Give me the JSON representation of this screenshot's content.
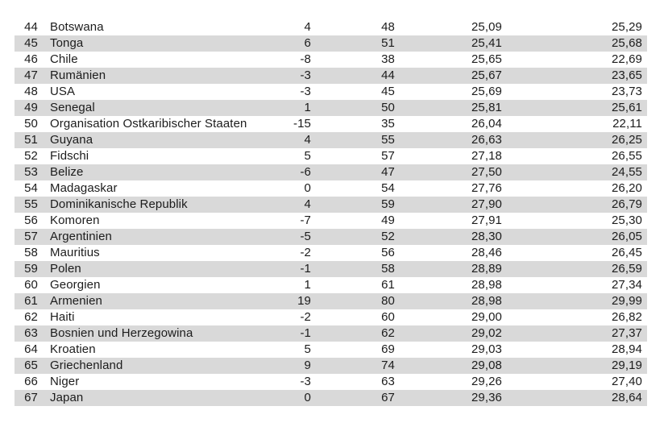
{
  "table": {
    "row_alt_bg": "#d9d9d9",
    "text_color": "#1c1c1c",
    "rows": [
      {
        "rank": "44",
        "country": "Botswana",
        "values": [
          "4",
          "48",
          "25,09",
          "25,29"
        ]
      },
      {
        "rank": "45",
        "country": "Tonga",
        "values": [
          "6",
          "51",
          "25,41",
          "25,68"
        ]
      },
      {
        "rank": "46",
        "country": "Chile",
        "values": [
          "-8",
          "38",
          "25,65",
          "22,69"
        ]
      },
      {
        "rank": "47",
        "country": "Rumänien",
        "values": [
          "-3",
          "44",
          "25,67",
          "23,65"
        ]
      },
      {
        "rank": "48",
        "country": "USA",
        "values": [
          "-3",
          "45",
          "25,69",
          "23,73"
        ]
      },
      {
        "rank": "49",
        "country": "Senegal",
        "values": [
          "1",
          "50",
          "25,81",
          "25,61"
        ]
      },
      {
        "rank": "50",
        "country": "Organisation Ostkaribischer Staaten",
        "values": [
          "-15",
          "35",
          "26,04",
          "22,11"
        ]
      },
      {
        "rank": "51",
        "country": "Guyana",
        "values": [
          "4",
          "55",
          "26,63",
          "26,25"
        ]
      },
      {
        "rank": "52",
        "country": "Fidschi",
        "values": [
          "5",
          "57",
          "27,18",
          "26,55"
        ]
      },
      {
        "rank": "53",
        "country": "Belize",
        "values": [
          "-6",
          "47",
          "27,50",
          "24,55"
        ]
      },
      {
        "rank": "54",
        "country": "Madagaskar",
        "values": [
          "0",
          "54",
          "27,76",
          "26,20"
        ]
      },
      {
        "rank": "55",
        "country": "Dominikanische Republik",
        "values": [
          "4",
          "59",
          "27,90",
          "26,79"
        ]
      },
      {
        "rank": "56",
        "country": "Komoren",
        "values": [
          "-7",
          "49",
          "27,91",
          "25,30"
        ]
      },
      {
        "rank": "57",
        "country": "Argentinien",
        "values": [
          "-5",
          "52",
          "28,30",
          "26,05"
        ]
      },
      {
        "rank": "58",
        "country": "Mauritius",
        "values": [
          "-2",
          "56",
          "28,46",
          "26,45"
        ]
      },
      {
        "rank": "59",
        "country": "Polen",
        "values": [
          "-1",
          "58",
          "28,89",
          "26,59"
        ]
      },
      {
        "rank": "60",
        "country": "Georgien",
        "values": [
          "1",
          "61",
          "28,98",
          "27,34"
        ]
      },
      {
        "rank": "61",
        "country": "Armenien",
        "values": [
          "19",
          "80",
          "28,98",
          "29,99"
        ]
      },
      {
        "rank": "62",
        "country": "Haiti",
        "values": [
          "-2",
          "60",
          "29,00",
          "26,82"
        ]
      },
      {
        "rank": "63",
        "country": "Bosnien und Herzegowina",
        "values": [
          "-1",
          "62",
          "29,02",
          "27,37"
        ]
      },
      {
        "rank": "64",
        "country": "Kroatien",
        "values": [
          "5",
          "69",
          "29,03",
          "28,94"
        ]
      },
      {
        "rank": "65",
        "country": "Griechenland",
        "values": [
          "9",
          "74",
          "29,08",
          "29,19"
        ]
      },
      {
        "rank": "66",
        "country": "Niger",
        "values": [
          "-3",
          "63",
          "29,26",
          "27,40"
        ]
      },
      {
        "rank": "67",
        "country": "Japan",
        "values": [
          "0",
          "67",
          "29,36",
          "28,64"
        ]
      }
    ]
  }
}
